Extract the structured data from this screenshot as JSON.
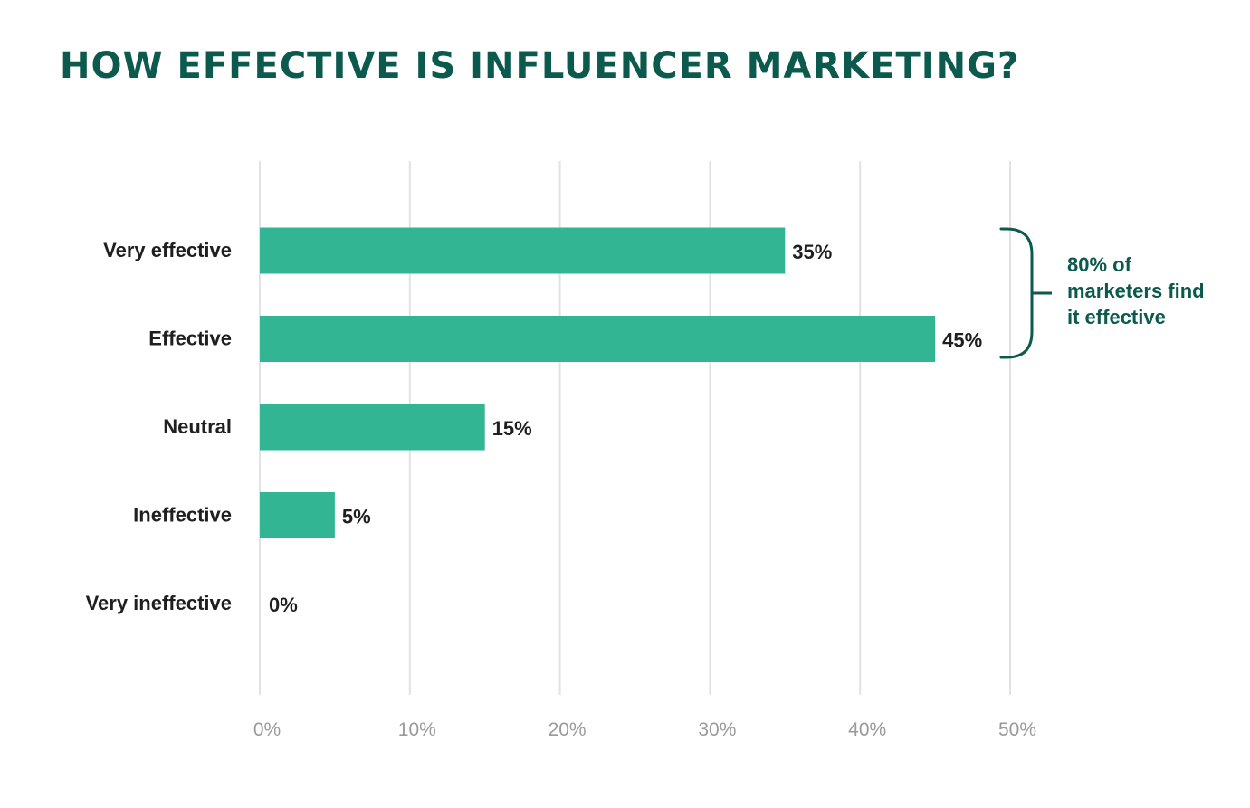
{
  "colors": {
    "title": "#0c5a4e",
    "bar": "#32b592",
    "annotation": "#0c5a4e",
    "grid": "#e2e2e2",
    "tick_text": "#9a9a9a",
    "label_text": "#1f1f1f"
  },
  "chart_data": {
    "type": "bar",
    "orientation": "horizontal",
    "title": "HOW EFFECTIVE IS INFLUENCER MARKETING?",
    "categories": [
      "Very effective",
      "Effective",
      "Neutral",
      "Ineffective",
      "Very ineffective"
    ],
    "values": [
      35,
      45,
      15,
      5,
      0
    ],
    "value_labels": [
      "35%",
      "45%",
      "15%",
      "5%",
      "0%"
    ],
    "xlim": [
      0,
      50
    ],
    "x_ticks": [
      0,
      10,
      20,
      30,
      40,
      50
    ],
    "x_tick_labels": [
      "0%",
      "10%",
      "20%",
      "30%",
      "40%",
      "50%"
    ],
    "grid": true,
    "annotation": {
      "lines": [
        "80% of",
        "marketers find",
        "it effective"
      ],
      "spans": [
        "Very effective",
        "Effective"
      ]
    }
  }
}
